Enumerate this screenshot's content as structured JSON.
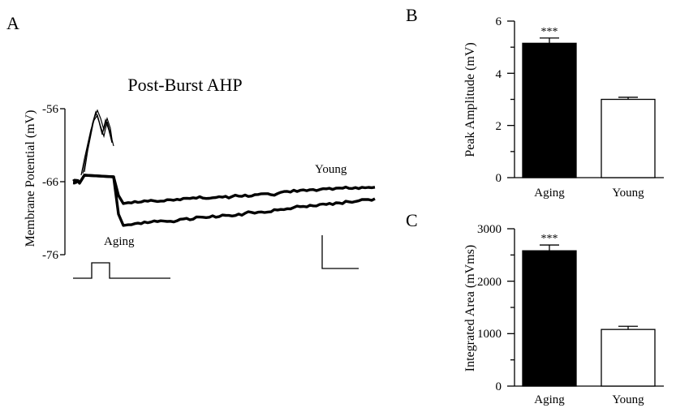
{
  "panels": {
    "a": "A",
    "b": "B",
    "c": "C"
  },
  "chart_data": [
    {
      "id": "A",
      "type": "line",
      "title": "Post-Burst AHP",
      "ylabel": "Membrane Potential (mV)",
      "yticks": [
        "-56",
        "-66",
        "-76"
      ],
      "ylim": [
        -76,
        -56
      ],
      "labels": {
        "young": "Young",
        "aging": "Aging"
      },
      "series": [
        {
          "label": "Young",
          "baseline": -66,
          "after_burst": -69.0,
          "end": -66.6
        },
        {
          "label": "Aging",
          "baseline": -66,
          "after_burst": -72.0,
          "end": -68.5
        }
      ]
    },
    {
      "id": "B",
      "type": "bar",
      "ylabel": "Peak Amplitude (mV)",
      "ylim": [
        0,
        6
      ],
      "yticks": [
        "0",
        "2",
        "4",
        "6"
      ],
      "categories": [
        "Aging",
        "Young"
      ],
      "values": [
        5.15,
        3.0
      ],
      "errors": [
        0.2,
        0.08
      ],
      "fills": [
        "#000000",
        "#ffffff"
      ],
      "significance": [
        "***",
        ""
      ]
    },
    {
      "id": "C",
      "type": "bar",
      "ylabel": "Integrated Area (mVms)",
      "ylim": [
        0,
        3000
      ],
      "yticks": [
        "0",
        "1000",
        "2000",
        "3000"
      ],
      "categories": [
        "Aging",
        "Young"
      ],
      "values": [
        2580,
        1080
      ],
      "errors": [
        110,
        60
      ],
      "fills": [
        "#000000",
        "#ffffff"
      ],
      "significance": [
        "***",
        ""
      ]
    }
  ]
}
